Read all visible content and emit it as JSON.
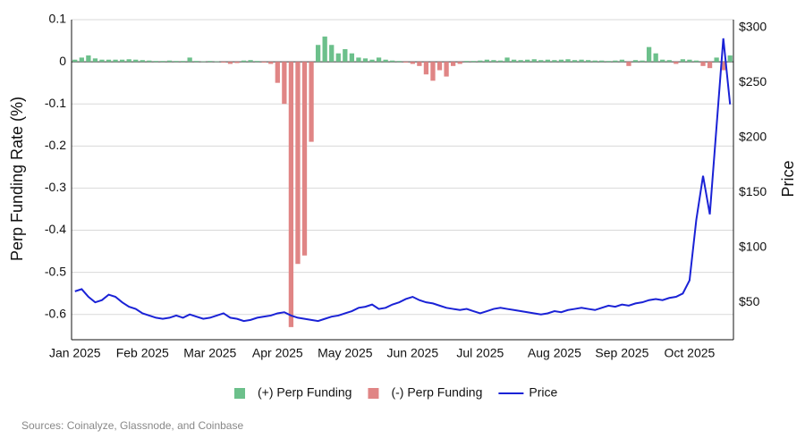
{
  "chart_data": {
    "type": "bar_line",
    "y_label": "Perp Funding Rate (%)",
    "y2_label": "Price",
    "source": "Sources: Coinalyze, Glassnode, and Coinbase",
    "legend": "bottom",
    "grid": true,
    "categories": [
      "Jan 2025",
      null,
      null,
      null,
      null,
      null,
      null,
      null,
      null,
      null,
      "Feb 2025",
      null,
      null,
      null,
      null,
      null,
      null,
      null,
      null,
      null,
      "Mar 2025",
      null,
      null,
      null,
      null,
      null,
      null,
      null,
      null,
      null,
      "Apr 2025",
      null,
      null,
      null,
      null,
      null,
      null,
      null,
      null,
      null,
      "May 2025",
      null,
      null,
      null,
      null,
      null,
      null,
      null,
      null,
      null,
      "Jun 2025",
      null,
      null,
      null,
      null,
      null,
      null,
      null,
      null,
      null,
      "Jul 2025",
      null,
      null,
      null,
      null,
      null,
      null,
      null,
      null,
      null,
      null,
      "Aug 2025",
      null,
      null,
      null,
      null,
      null,
      null,
      null,
      null,
      null,
      "Sep 2025",
      null,
      null,
      null,
      null,
      null,
      null,
      null,
      null,
      null,
      "Oct 2025",
      null,
      null,
      null,
      null,
      null,
      null
    ],
    "series": [
      {
        "name": "(+) Perp Funding",
        "color": "#6cc08b",
        "values": [
          0.005,
          0.01,
          0.015,
          0.008,
          0.005,
          0.005,
          0.005,
          0.005,
          0.006,
          0.005,
          0.004,
          0.003,
          0.002,
          0.002,
          0.003,
          0.002,
          0.002,
          0.01,
          0.002,
          0.001,
          0.002,
          0.001,
          null,
          null,
          null,
          0.003,
          0.004,
          0.002,
          null,
          null,
          null,
          null,
          null,
          null,
          null,
          null,
          0.04,
          0.06,
          0.04,
          0.02,
          0.03,
          0.02,
          0.01,
          0.008,
          0.005,
          0.01,
          0.005,
          0.003,
          0.002,
          null,
          null,
          null,
          null,
          null,
          null,
          null,
          null,
          null,
          0.002,
          0.002,
          0.003,
          0.005,
          0.004,
          0.003,
          0.01,
          0.005,
          0.004,
          0.005,
          0.006,
          0.004,
          0.005,
          0.004,
          0.005,
          0.006,
          0.004,
          0.005,
          0.004,
          0.003,
          0.003,
          0.002,
          0.003,
          0.005,
          null,
          0.004,
          0.003,
          0.035,
          0.02,
          0.005,
          0.004,
          null,
          0.006,
          0.005,
          0.003,
          null,
          null,
          0.01,
          null,
          0.015
        ]
      },
      {
        "name": "(-) Perp Funding",
        "color": "#e08585",
        "values": [
          null,
          null,
          null,
          null,
          null,
          null,
          null,
          null,
          null,
          null,
          null,
          null,
          null,
          null,
          null,
          null,
          null,
          null,
          null,
          null,
          null,
          null,
          -0.002,
          -0.005,
          -0.003,
          null,
          null,
          null,
          -0.002,
          -0.005,
          -0.05,
          -0.1,
          -0.63,
          -0.48,
          -0.46,
          -0.19,
          null,
          null,
          null,
          null,
          null,
          null,
          null,
          null,
          null,
          null,
          null,
          null,
          null,
          -0.002,
          -0.005,
          -0.01,
          -0.03,
          -0.045,
          -0.02,
          -0.035,
          -0.01,
          -0.005,
          null,
          null,
          null,
          null,
          null,
          null,
          null,
          null,
          null,
          null,
          null,
          null,
          null,
          null,
          null,
          null,
          null,
          null,
          null,
          null,
          null,
          null,
          null,
          null,
          -0.01,
          null,
          null,
          null,
          null,
          null,
          null,
          -0.005,
          null,
          null,
          null,
          -0.01,
          -0.015,
          null,
          -0.02,
          null
        ]
      },
      {
        "name": "Price",
        "color": "#1a22d6",
        "axis": "y2",
        "values": [
          60,
          62,
          55,
          50,
          52,
          57,
          55,
          50,
          46,
          44,
          40,
          38,
          36,
          35,
          36,
          38,
          36,
          39,
          37,
          35,
          36,
          38,
          40,
          36,
          35,
          33,
          34,
          36,
          37,
          38,
          40,
          41,
          38,
          36,
          35,
          34,
          33,
          35,
          37,
          38,
          40,
          42,
          45,
          46,
          48,
          44,
          45,
          48,
          50,
          53,
          55,
          52,
          50,
          49,
          47,
          45,
          44,
          43,
          44,
          42,
          40,
          42,
          44,
          45,
          44,
          43,
          42,
          41,
          40,
          39,
          40,
          42,
          41,
          43,
          44,
          45,
          44,
          43,
          45,
          47,
          46,
          48,
          47,
          49,
          50,
          52,
          53,
          52,
          54,
          55,
          58,
          70,
          125,
          165,
          130,
          210,
          290,
          230
        ]
      }
    ],
    "ylim": [
      -0.66,
      0.1
    ],
    "yticks": [
      0.1,
      0,
      -0.1,
      -0.2,
      -0.3,
      -0.4,
      -0.5,
      -0.6
    ],
    "y2lim": [
      16,
      307
    ],
    "y2ticks": [
      {
        "value": 300,
        "label": "$300"
      },
      {
        "value": 250,
        "label": "$250"
      },
      {
        "value": 200,
        "label": "$200"
      },
      {
        "value": 150,
        "label": "$150"
      },
      {
        "value": 100,
        "label": "$100"
      },
      {
        "value": 50,
        "label": "$50"
      }
    ]
  }
}
